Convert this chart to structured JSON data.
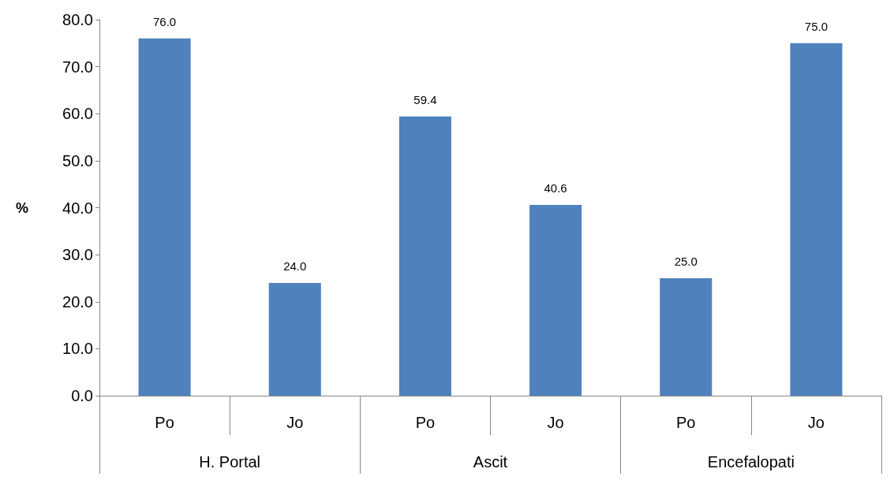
{
  "chart_data": {
    "type": "bar",
    "ylabel": "%",
    "categories": [
      "Po",
      "Jo",
      "Po",
      "Jo",
      "Po",
      "Jo"
    ],
    "annotations": [
      "H. Portal",
      "Ascit",
      "Encefalopati"
    ],
    "series": [
      {
        "color": "#4f81bd",
        "values": [
          76.0,
          24.0,
          59.4,
          40.6,
          25.0,
          75.0
        ],
        "value_labels": [
          "76.0",
          "24.0",
          "59.4",
          "40.6",
          "25.0",
          "75.0"
        ]
      }
    ],
    "ylim": [
      0,
      80
    ],
    "yticks": [
      {
        "value": 0,
        "label": "0.0"
      },
      {
        "value": 10,
        "label": "10.0"
      },
      {
        "value": 20,
        "label": "20.0"
      },
      {
        "value": 30,
        "label": "30.0"
      },
      {
        "value": 40,
        "label": "40.0"
      },
      {
        "value": 50,
        "label": "50.0"
      },
      {
        "value": 60,
        "label": "60.0"
      },
      {
        "value": 70,
        "label": "70.0"
      },
      {
        "value": 80,
        "label": "80.0"
      }
    ],
    "grid": false
  }
}
